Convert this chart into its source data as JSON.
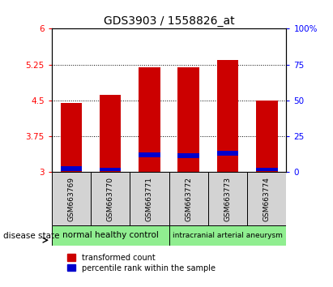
{
  "title": "GDS3903 / 1558826_at",
  "samples": [
    "GSM663769",
    "GSM663770",
    "GSM663771",
    "GSM663772",
    "GSM663773",
    "GSM663774"
  ],
  "red_heights": [
    4.45,
    4.62,
    5.2,
    5.2,
    5.35,
    4.5
  ],
  "blue_bottoms": [
    3.03,
    3.03,
    3.32,
    3.3,
    3.35,
    3.03
  ],
  "blue_heights": [
    0.09,
    0.07,
    0.09,
    0.09,
    0.09,
    0.06
  ],
  "bar_bottom": 3.0,
  "ylim_left": [
    3,
    6
  ],
  "ylim_right": [
    0,
    100
  ],
  "yticks_left": [
    3,
    3.75,
    4.5,
    5.25,
    6
  ],
  "ytick_labels_left": [
    "3",
    "3.75",
    "4.5",
    "5.25",
    "6"
  ],
  "yticks_right": [
    0,
    25,
    50,
    75,
    100
  ],
  "ytick_labels_right": [
    "0",
    "25",
    "50",
    "75",
    "100%"
  ],
  "group1_label": "normal healthy control",
  "group2_label": "intracranial arterial aneurysm",
  "group_color": "#90EE90",
  "disease_state_label": "disease state",
  "red_color": "#CC0000",
  "blue_color": "#0000CC",
  "bar_width": 0.55,
  "legend_red_label": "transformed count",
  "legend_blue_label": "percentile rank within the sample",
  "title_fontsize": 10,
  "tick_label_fontsize": 7.5,
  "sample_label_fontsize": 6.5,
  "group_label_fontsize": 7.5,
  "legend_fontsize": 7
}
